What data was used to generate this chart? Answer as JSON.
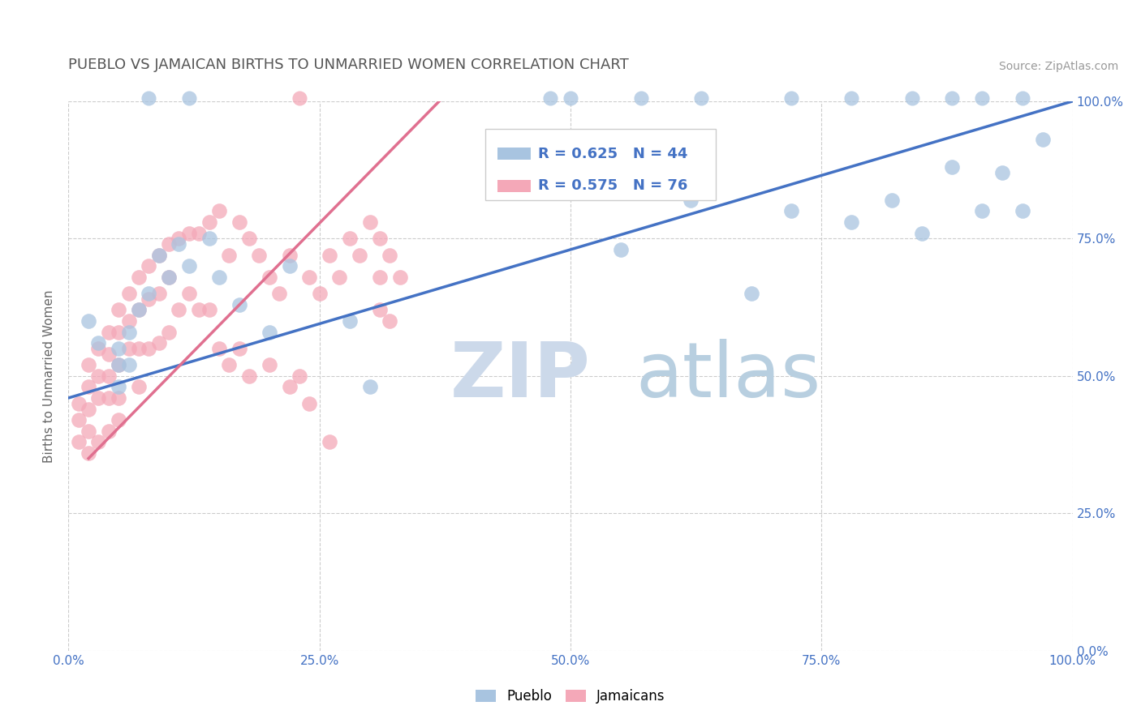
{
  "title": "PUEBLO VS JAMAICAN BIRTHS TO UNMARRIED WOMEN CORRELATION CHART",
  "source": "Source: ZipAtlas.com",
  "ylabel": "Births to Unmarried Women",
  "watermark_zip": "ZIP",
  "watermark_atlas": "atlas",
  "legend_pueblo_R": 0.625,
  "legend_pueblo_N": 44,
  "legend_jamaican_R": 0.575,
  "legend_jamaican_N": 76,
  "pueblo_color": "#a8c4e0",
  "jamaican_color": "#f4a8b8",
  "pueblo_line_color": "#4472c4",
  "jamaican_line_color": "#e07090",
  "background_color": "#ffffff",
  "grid_color": "#cccccc",
  "title_color": "#555555",
  "axis_tick_color": "#4472c4",
  "xlim": [
    0,
    1
  ],
  "ylim": [
    0,
    1
  ],
  "pueblo_trend_x0": 0.0,
  "pueblo_trend_y0": 0.46,
  "pueblo_trend_x1": 1.0,
  "pueblo_trend_y1": 1.0,
  "jamaican_trend_x0": 0.02,
  "jamaican_trend_y0": 0.35,
  "jamaican_trend_x1": 0.38,
  "jamaican_trend_y1": 1.02,
  "pueblo_x": [
    0.02,
    0.03,
    0.05,
    0.05,
    0.05,
    0.06,
    0.06,
    0.07,
    0.08,
    0.09,
    0.1,
    0.11,
    0.12,
    0.14,
    0.15,
    0.17,
    0.2,
    0.22,
    0.28,
    0.3,
    0.55,
    0.62,
    0.68,
    0.72,
    0.78,
    0.82,
    0.85,
    0.88,
    0.91,
    0.93,
    0.95,
    0.97
  ],
  "pueblo_y": [
    0.6,
    0.56,
    0.55,
    0.52,
    0.48,
    0.58,
    0.52,
    0.62,
    0.65,
    0.72,
    0.68,
    0.74,
    0.7,
    0.75,
    0.68,
    0.63,
    0.58,
    0.7,
    0.6,
    0.48,
    0.73,
    0.82,
    0.65,
    0.8,
    0.78,
    0.82,
    0.76,
    0.88,
    0.8,
    0.87,
    0.8,
    0.93
  ],
  "jamaican_x": [
    0.01,
    0.01,
    0.01,
    0.02,
    0.02,
    0.02,
    0.02,
    0.02,
    0.03,
    0.03,
    0.03,
    0.03,
    0.04,
    0.04,
    0.04,
    0.04,
    0.04,
    0.05,
    0.05,
    0.05,
    0.05,
    0.05,
    0.06,
    0.06,
    0.06,
    0.07,
    0.07,
    0.07,
    0.07,
    0.08,
    0.08,
    0.08,
    0.09,
    0.09,
    0.09,
    0.1,
    0.1,
    0.1,
    0.11,
    0.11,
    0.12,
    0.12,
    0.13,
    0.13,
    0.14,
    0.14,
    0.15,
    0.16,
    0.17,
    0.18,
    0.19,
    0.2,
    0.21,
    0.22,
    0.23,
    0.24,
    0.25,
    0.26,
    0.27,
    0.28,
    0.29,
    0.3,
    0.31,
    0.31,
    0.31,
    0.32,
    0.32,
    0.33,
    0.15,
    0.16,
    0.17,
    0.18,
    0.2,
    0.22,
    0.24,
    0.26
  ],
  "jamaican_y": [
    0.45,
    0.42,
    0.38,
    0.52,
    0.48,
    0.44,
    0.4,
    0.36,
    0.55,
    0.5,
    0.46,
    0.38,
    0.58,
    0.54,
    0.5,
    0.46,
    0.4,
    0.62,
    0.58,
    0.52,
    0.46,
    0.42,
    0.65,
    0.6,
    0.55,
    0.68,
    0.62,
    0.55,
    0.48,
    0.7,
    0.64,
    0.55,
    0.72,
    0.65,
    0.56,
    0.74,
    0.68,
    0.58,
    0.75,
    0.62,
    0.76,
    0.65,
    0.76,
    0.62,
    0.78,
    0.62,
    0.8,
    0.72,
    0.78,
    0.75,
    0.72,
    0.68,
    0.65,
    0.72,
    0.5,
    0.68,
    0.65,
    0.72,
    0.68,
    0.75,
    0.72,
    0.78,
    0.75,
    0.68,
    0.62,
    0.72,
    0.6,
    0.68,
    0.55,
    0.52,
    0.55,
    0.5,
    0.52,
    0.48,
    0.45,
    0.38
  ],
  "top_pueblo_x": [
    0.08,
    0.12,
    0.48,
    0.5,
    0.57,
    0.63,
    0.72,
    0.78,
    0.84,
    0.88,
    0.91,
    0.95
  ],
  "top_jamaican_x": [
    0.23
  ],
  "ytick_labels": [
    "0.0%",
    "25.0%",
    "50.0%",
    "75.0%",
    "100.0%"
  ],
  "ytick_values": [
    0.0,
    0.25,
    0.5,
    0.75,
    1.0
  ],
  "xtick_labels": [
    "0.0%",
    "25.0%",
    "50.0%",
    "75.0%",
    "100.0%"
  ],
  "xtick_values": [
    0.0,
    0.25,
    0.5,
    0.75,
    1.0
  ]
}
